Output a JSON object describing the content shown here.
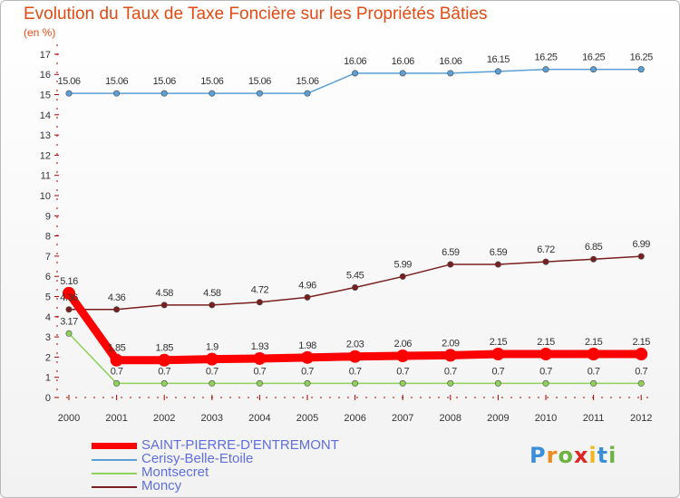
{
  "header": {
    "title": "Evolution du Taux de Taxe Foncière sur les Propriétés Bâties",
    "unit": "(en %)"
  },
  "logo": {
    "text": "Proxiti"
  },
  "chart_data": {
    "type": "line",
    "title": "Evolution du Taux de Taxe Foncière sur les Propriétés Bâties",
    "ylabel": "(en %)",
    "xlabel": "",
    "x": [
      "2000",
      "2001",
      "2002",
      "2003",
      "2004",
      "2005",
      "2006",
      "2007",
      "2008",
      "2009",
      "2010",
      "2011",
      "2012"
    ],
    "ylim": [
      0,
      17
    ],
    "yticks": [
      "0",
      "1",
      "2",
      "3",
      "4",
      "5",
      "6",
      "7",
      "8",
      "9",
      "10",
      "11",
      "12",
      "13",
      "14",
      "15",
      "16",
      "17"
    ],
    "grid": false,
    "legend_position": "bottom-left",
    "series": [
      {
        "name": "SAINT-PIERRE-D'ENTREMONT",
        "color": "#ff0000",
        "values": [
          5.16,
          1.85,
          1.85,
          1.9,
          1.93,
          1.98,
          2.03,
          2.06,
          2.09,
          2.15,
          2.15,
          2.15,
          2.15
        ],
        "labels": [
          "5.16",
          "1.85",
          "1.85",
          "1.9",
          "1.93",
          "1.98",
          "2.03",
          "2.06",
          "2.09",
          "2.15",
          "2.15",
          "2.15",
          "2.15"
        ]
      },
      {
        "name": "Cerisy-Belle-Etoile",
        "color": "#5a9fd8",
        "values": [
          15.06,
          15.06,
          15.06,
          15.06,
          15.06,
          15.06,
          16.06,
          16.06,
          16.06,
          16.15,
          16.25,
          16.25,
          16.25
        ],
        "labels": [
          "15.06",
          "15.06",
          "15.06",
          "15.06",
          "15.06",
          "15.06",
          "16.06",
          "16.06",
          "16.06",
          "16.15",
          "16.25",
          "16.25",
          "16.25"
        ]
      },
      {
        "name": "Montsecret",
        "color": "#8fd15a",
        "values": [
          3.17,
          0.7,
          0.7,
          0.7,
          0.7,
          0.7,
          0.7,
          0.7,
          0.7,
          0.7,
          0.7,
          0.7,
          0.7
        ],
        "labels": [
          "3.17",
          "0.7",
          "0.7",
          "0.7",
          "0.7",
          "0.7",
          "0.7",
          "0.7",
          "0.7",
          "0.7",
          "0.7",
          "0.7",
          "0.7"
        ]
      },
      {
        "name": "Moncy",
        "color": "#7a1f1f",
        "values": [
          4.36,
          4.36,
          4.58,
          4.58,
          4.72,
          4.96,
          5.45,
          5.99,
          6.59,
          6.59,
          6.72,
          6.85,
          6.99
        ],
        "labels": [
          "4.36",
          "4.36",
          "4.58",
          "4.58",
          "4.72",
          "4.96",
          "5.45",
          "5.99",
          "6.59",
          "6.59",
          "6.72",
          "6.85",
          "6.99"
        ]
      }
    ]
  }
}
